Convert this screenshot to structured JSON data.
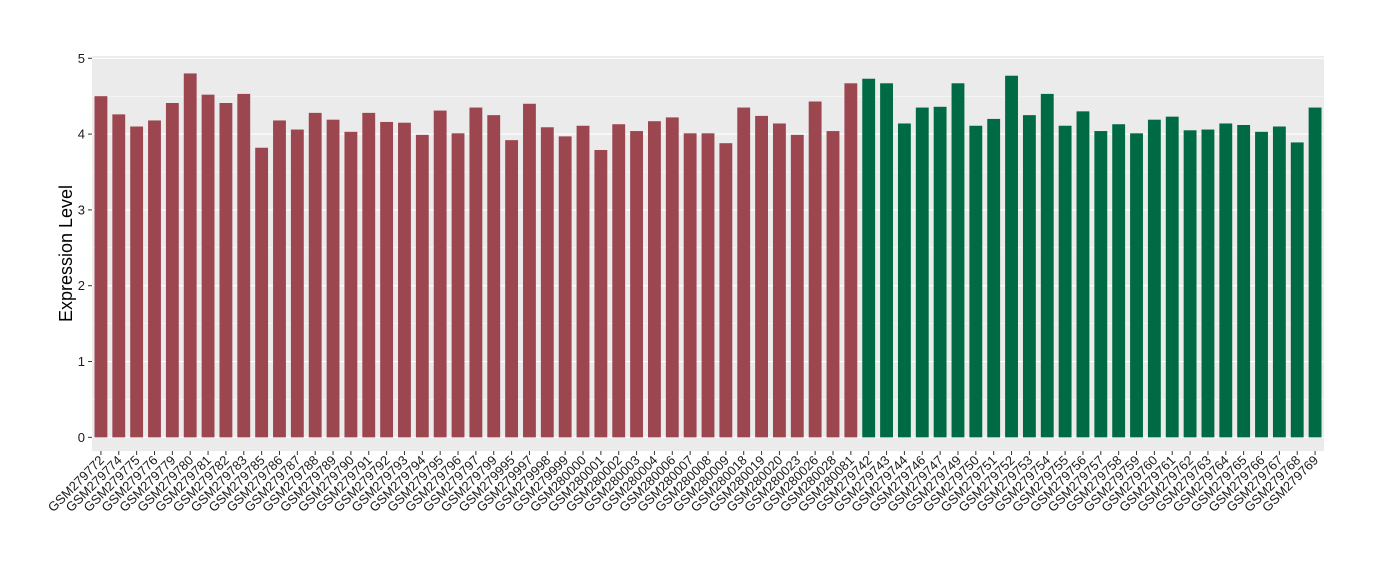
{
  "chart_data": {
    "type": "bar",
    "title": "",
    "xlabel": "",
    "ylabel": "Expression Level",
    "ylim": [
      -0.18,
      5.03
    ],
    "yticks": [
      0,
      1,
      2,
      3,
      4,
      5
    ],
    "grid": true,
    "legend": "none",
    "colors": {
      "group1": "#9c4650",
      "group2": "#006a44",
      "panel": "#ebebeb",
      "gridline": "#ffffff"
    },
    "categories": [
      "GSM279772",
      "GSM279774",
      "GSM279775",
      "GSM279776",
      "GSM279779",
      "GSM279780",
      "GSM279781",
      "GSM279782",
      "GSM279783",
      "GSM279785",
      "GSM279786",
      "GSM279787",
      "GSM279788",
      "GSM279789",
      "GSM279790",
      "GSM279791",
      "GSM279792",
      "GSM279793",
      "GSM279794",
      "GSM279795",
      "GSM279796",
      "GSM279797",
      "GSM279799",
      "GSM279995",
      "GSM279997",
      "GSM279998",
      "GSM279999",
      "GSM280000",
      "GSM280001",
      "GSM280002",
      "GSM280003",
      "GSM280004",
      "GSM280006",
      "GSM280007",
      "GSM280008",
      "GSM280009",
      "GSM280018",
      "GSM280019",
      "GSM280020",
      "GSM280023",
      "GSM280026",
      "GSM280028",
      "GSM280081",
      "GSM279742",
      "GSM279743",
      "GSM279744",
      "GSM279746",
      "GSM279747",
      "GSM279749",
      "GSM279750",
      "GSM279751",
      "GSM279752",
      "GSM279753",
      "GSM279754",
      "GSM279755",
      "GSM279756",
      "GSM279757",
      "GSM279758",
      "GSM279759",
      "GSM279760",
      "GSM279761",
      "GSM279762",
      "GSM279763",
      "GSM279764",
      "GSM279765",
      "GSM279766",
      "GSM279767",
      "GSM279768",
      "GSM279769"
    ],
    "values": [
      4.5,
      4.26,
      4.1,
      4.18,
      4.41,
      4.8,
      4.52,
      4.41,
      4.53,
      3.82,
      4.18,
      4.06,
      4.28,
      4.19,
      4.03,
      4.28,
      4.16,
      4.15,
      3.99,
      4.31,
      4.01,
      4.35,
      4.25,
      3.92,
      4.4,
      4.09,
      3.97,
      4.11,
      3.79,
      4.13,
      4.04,
      4.17,
      4.22,
      4.01,
      4.01,
      3.88,
      4.35,
      4.24,
      4.14,
      3.99,
      4.43,
      4.04,
      4.67,
      4.73,
      4.67,
      4.14,
      4.35,
      4.36,
      4.67,
      4.11,
      4.2,
      4.77,
      4.25,
      4.53,
      4.11,
      4.3,
      4.04,
      4.13,
      4.01,
      4.19,
      4.23,
      4.05,
      4.06,
      4.14,
      4.12,
      4.03,
      4.1,
      3.89,
      4.35
    ],
    "groups": [
      "group1",
      "group1",
      "group1",
      "group1",
      "group1",
      "group1",
      "group1",
      "group1",
      "group1",
      "group1",
      "group1",
      "group1",
      "group1",
      "group1",
      "group1",
      "group1",
      "group1",
      "group1",
      "group1",
      "group1",
      "group1",
      "group1",
      "group1",
      "group1",
      "group1",
      "group1",
      "group1",
      "group1",
      "group1",
      "group1",
      "group1",
      "group1",
      "group1",
      "group1",
      "group1",
      "group1",
      "group1",
      "group1",
      "group1",
      "group1",
      "group1",
      "group1",
      "group1",
      "group2",
      "group2",
      "group2",
      "group2",
      "group2",
      "group2",
      "group2",
      "group2",
      "group2",
      "group2",
      "group2",
      "group2",
      "group2",
      "group2",
      "group2",
      "group2",
      "group2",
      "group2",
      "group2",
      "group2",
      "group2",
      "group2",
      "group2",
      "group2",
      "group2",
      "group2"
    ]
  }
}
